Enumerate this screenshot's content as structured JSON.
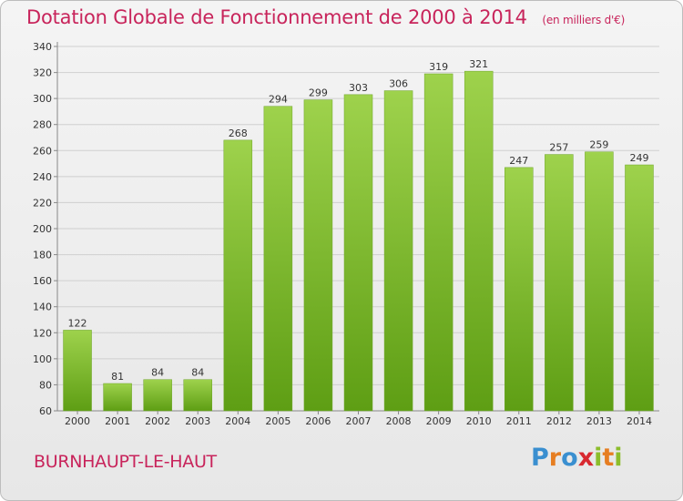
{
  "header": {
    "title": "Dotation Globale de Fonctionnement de 2000 à 2014",
    "unit": "(en milliers d'€)"
  },
  "footer": {
    "commune": "BURNHAUPT-LE-HAUT",
    "brand": {
      "letters": [
        "P",
        "r",
        "o",
        "x",
        "i",
        "t",
        "i"
      ],
      "colors": [
        "#3a8fd0",
        "#e67e22",
        "#3a8fd0",
        "#d8282f",
        "#8cbd2b",
        "#e67e22",
        "#8cbd2b"
      ]
    }
  },
  "colors": {
    "title": "#c8245b",
    "bar_light": "#9ed24c",
    "bar_dark": "#5e9e14",
    "grid": "#cfcfcf"
  },
  "chart_data": {
    "type": "bar",
    "title": "Dotation Globale de Fonctionnement de 2000 à 2014",
    "subtitle": "(en milliers d'€)",
    "categories": [
      "2000",
      "2001",
      "2002",
      "2003",
      "2004",
      "2005",
      "2006",
      "2007",
      "2008",
      "2009",
      "2010",
      "2011",
      "2012",
      "2013",
      "2014"
    ],
    "values": [
      122,
      81,
      84,
      84,
      268,
      294,
      299,
      303,
      306,
      319,
      321,
      247,
      257,
      259,
      249
    ],
    "ylim": [
      60,
      340
    ],
    "yticks": [
      60,
      80,
      100,
      120,
      140,
      160,
      180,
      200,
      220,
      240,
      260,
      280,
      300,
      320,
      340
    ],
    "grid": true,
    "data_labels": true
  }
}
